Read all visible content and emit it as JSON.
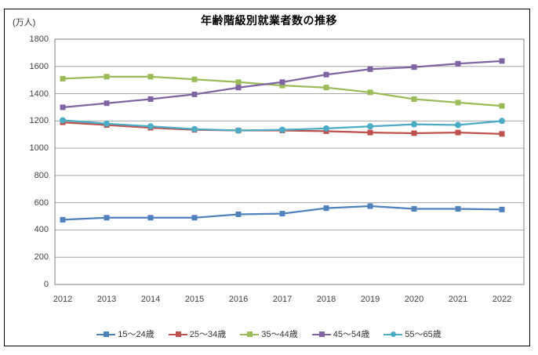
{
  "chart_data": {
    "type": "line",
    "title": "年齢階級別就業者数の推移",
    "unit_label": "(万人)",
    "x": [
      "2012",
      "2013",
      "2014",
      "2015",
      "2016",
      "2017",
      "2018",
      "2019",
      "2020",
      "2021",
      "2022"
    ],
    "series": [
      {
        "name": "15〜24歳",
        "color": "#4F81BD",
        "marker": "square",
        "values": [
          475,
          490,
          490,
          490,
          515,
          520,
          560,
          575,
          555,
          555,
          550
        ]
      },
      {
        "name": "25〜34歳",
        "color": "#C0504D",
        "marker": "square",
        "values": [
          1190,
          1170,
          1150,
          1135,
          1130,
          1130,
          1125,
          1115,
          1110,
          1115,
          1105
        ]
      },
      {
        "name": "35〜44歳",
        "color": "#9BBB59",
        "marker": "square",
        "values": [
          1510,
          1525,
          1525,
          1505,
          1485,
          1460,
          1445,
          1410,
          1360,
          1335,
          1310
        ]
      },
      {
        "name": "45〜54歳",
        "color": "#8064A2",
        "marker": "square",
        "values": [
          1300,
          1330,
          1360,
          1395,
          1445,
          1485,
          1540,
          1580,
          1595,
          1620,
          1640
        ]
      },
      {
        "name": "55〜65歳",
        "color": "#4BACC6",
        "marker": "circle",
        "values": [
          1205,
          1180,
          1160,
          1140,
          1130,
          1135,
          1145,
          1160,
          1175,
          1170,
          1200
        ]
      }
    ],
    "ylim": [
      0,
      1800
    ],
    "yticks": [
      0,
      200,
      400,
      600,
      800,
      1000,
      1200,
      1400,
      1600,
      1800
    ],
    "grid": true,
    "legend_position": "bottom",
    "colors": {
      "gridline": "#A6A6A6",
      "plot_border": "#808080",
      "outer_border": "#000000",
      "tick_text": "#3F3F3F"
    }
  }
}
